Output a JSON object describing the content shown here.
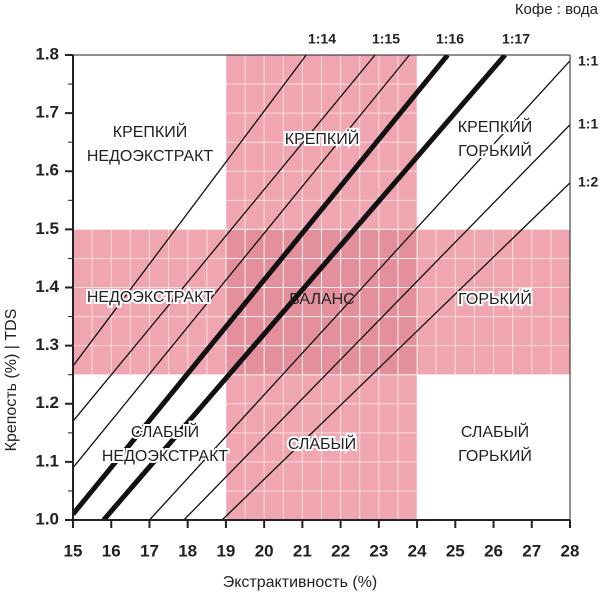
{
  "chart_data": {
    "type": "brewing-control",
    "header": "Кофе : вода",
    "xlabel": "Экстрактивность (%)",
    "ylabel": "Крепость (%) | TDS",
    "xlim": [
      15,
      28
    ],
    "ylim": [
      1.0,
      1.8
    ],
    "xticks": [
      15,
      16,
      17,
      18,
      19,
      20,
      21,
      22,
      23,
      24,
      25,
      26,
      27,
      28
    ],
    "yticks": [
      {
        "value": 1.0,
        "label": "1.0"
      },
      {
        "value": 1.1,
        "label": "1.1"
      },
      {
        "value": 1.2,
        "label": "1.2"
      },
      {
        "value": 1.3,
        "label": "1.3"
      },
      {
        "value": 1.4,
        "label": "1.4"
      },
      {
        "value": 1.5,
        "label": "1.5"
      },
      {
        "value": 1.6,
        "label": "1.6"
      },
      {
        "value": 1.7,
        "label": "1.7"
      },
      {
        "value": 1.8,
        "label": "1.8"
      }
    ],
    "ideal_zone": {
      "x": [
        19,
        24
      ],
      "y": [
        1.25,
        1.5
      ],
      "color": "#f0a6b0"
    },
    "ratio_lines": [
      {
        "x": [
          15,
          21.1
        ],
        "y": [
          1.265,
          1.8
        ],
        "style": "thin"
      },
      {
        "x": [
          15,
          22.9
        ],
        "y": [
          1.17,
          1.8
        ],
        "style": "thin"
      },
      {
        "x": [
          15,
          23.8
        ],
        "y": [
          1.09,
          1.8
        ],
        "style": "thin"
      },
      {
        "x": [
          15,
          24.8
        ],
        "y": [
          1.01,
          1.8
        ],
        "style": "thick"
      },
      {
        "x": [
          15.8,
          26.3
        ],
        "y": [
          1.0,
          1.8
        ],
        "style": "thick"
      },
      {
        "x": [
          17.0,
          28
        ],
        "y": [
          1.0,
          1.79
        ],
        "style": "thin"
      },
      {
        "x": [
          17.9,
          28
        ],
        "y": [
          1.0,
          1.68
        ],
        "style": "thin"
      },
      {
        "x": [
          18.9,
          28
        ],
        "y": [
          1.0,
          1.58
        ],
        "style": "thin"
      }
    ],
    "top_ratio_labels": [
      "1:14",
      "1:15",
      "1:16",
      "1:17"
    ],
    "right_ratio_labels": [
      "1:1",
      "1:1",
      "1:2"
    ],
    "zone_labels": [
      [
        "КРЕПКИЙ",
        "НЕДОЭКСТРАКТ"
      ],
      [
        "КРЕПКИЙ"
      ],
      [
        "КРЕПКИЙ",
        "ГОРЬКИЙ"
      ],
      [
        "НЕДОЭКСТРАКТ"
      ],
      [
        "БАЛАНС"
      ],
      [
        "ГОРЬКИЙ"
      ],
      [
        "СЛАБЫЙ",
        "НЕДОЭКСТРАКТ"
      ],
      [
        "СЛАБЫЙ"
      ],
      [
        "СЛАБЫЙ",
        "ГОРЬКИЙ"
      ]
    ]
  }
}
